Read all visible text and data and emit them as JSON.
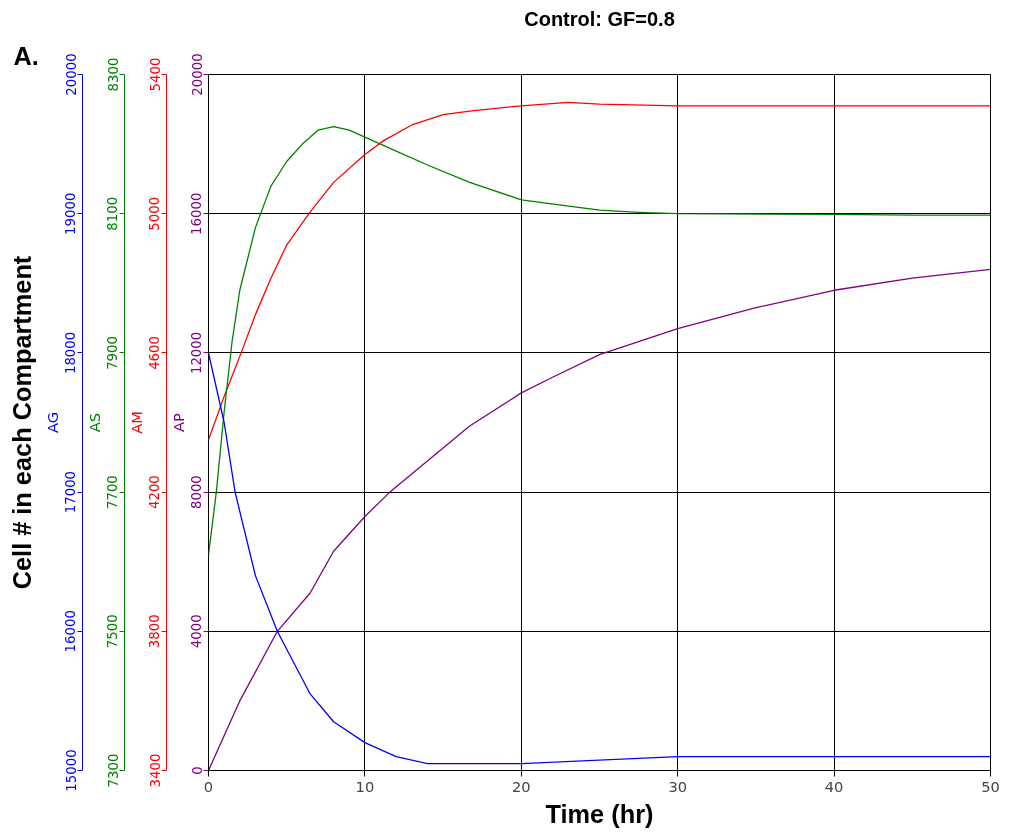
{
  "chart_data": [
    {
      "type": "line",
      "title": "Control: GF=0.8",
      "xlabel": "Time (hr)",
      "annotations": [
        "A."
      ],
      "legend": false,
      "xlim": [
        0,
        50
      ],
      "xticks": [
        0,
        10,
        20,
        30,
        40,
        50
      ],
      "ylim": [
        0,
        20000
      ],
      "yticks": [
        0,
        4000,
        8000,
        12000,
        16000,
        20000
      ],
      "y2lim": [
        3400,
        5400
      ],
      "y2ticks": [
        3400,
        3800,
        4200,
        4600,
        5000,
        5400
      ],
      "y3lim": [
        7300,
        8300
      ],
      "y3ticks": [
        7300,
        7500,
        7700,
        7900,
        8100,
        8300
      ],
      "grid": true,
      "series": [
        {
          "name": "AP",
          "color": "#800080",
          "axis": "y",
          "x": [
            0,
            2,
            4.4,
            6.5,
            8,
            10,
            11.6,
            16.7,
            20,
            22,
            25,
            30,
            35,
            40,
            45,
            50
          ],
          "values": [
            0,
            2000,
            4000,
            5100,
            6300,
            7300,
            8000,
            9900,
            10850,
            11300,
            11950,
            12700,
            13300,
            13800,
            14150,
            14400
          ]
        },
        {
          "name": "AM",
          "color": "#ff0000",
          "axis": "y2",
          "x": [
            0,
            1,
            2,
            3,
            4,
            5,
            6.5,
            8,
            10,
            11.2,
            13,
            15,
            16.7,
            20,
            23,
            25,
            30,
            33,
            40,
            50
          ],
          "values": [
            4350,
            4475,
            4590,
            4710,
            4815,
            4910,
            5005,
            5090,
            5170,
            5210,
            5255,
            5285,
            5295,
            5310,
            5320,
            5315,
            5310,
            5310,
            5310,
            5310
          ]
        },
        {
          "name": "AS",
          "color": "#008000",
          "axis": "y3",
          "x": [
            0,
            0.5,
            1,
            1.5,
            2,
            3,
            4,
            5,
            6,
            7,
            8,
            9,
            10,
            11,
            12,
            14,
            16.7,
            20,
            25,
            27.5,
            30,
            40,
            45,
            50
          ],
          "values": [
            7610,
            7700,
            7815,
            7915,
            7990,
            8080,
            8140,
            8175,
            8200,
            8220,
            8225,
            8220,
            8210,
            8200,
            8190,
            8170,
            8145,
            8120,
            8105,
            8102,
            8100,
            8099,
            8098,
            8098
          ]
        }
      ]
    },
    {
      "type": "line",
      "xlim": [
        0,
        50
      ],
      "tick_labels": "y",
      "ylabel": "Cell # in each Compartment",
      "ylim": [
        15000,
        20000
      ],
      "yticks": [
        15000,
        16000,
        17000,
        18000,
        19000,
        20000
      ],
      "series": [
        {
          "name": "AG",
          "color": "#0000ff",
          "x": [
            0,
            1,
            1.7,
            3,
            4.4,
            6.5,
            8,
            10,
            12,
            14,
            16,
            20,
            30,
            40,
            50
          ],
          "values": [
            18000,
            17500,
            17000,
            16400,
            16000,
            15550,
            15350,
            15200,
            15100,
            15050,
            15050,
            15050,
            15100,
            15100,
            15100
          ]
        }
      ]
    }
  ]
}
